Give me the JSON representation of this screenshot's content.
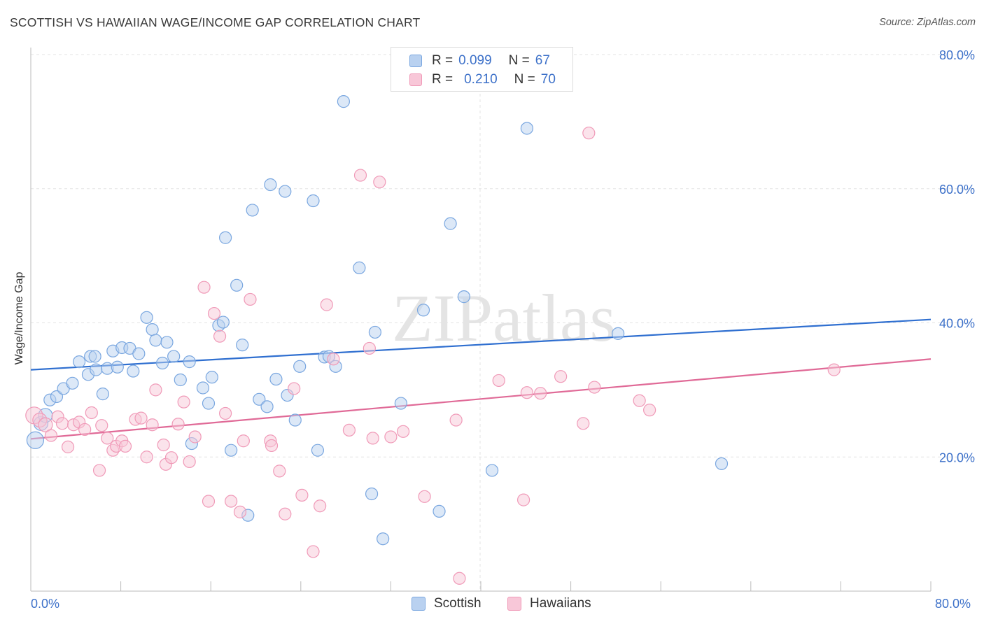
{
  "chart_data": {
    "type": "scatter",
    "title": "SCOTTISH VS HAWAIIAN WAGE/INCOME GAP CORRELATION CHART",
    "source": "Source: ZipAtlas.com",
    "xlabel": "",
    "ylabel": "Wage/Income Gap",
    "xlim": [
      0,
      80
    ],
    "ylim": [
      0,
      80
    ],
    "x_tick_labels": [
      "0.0%",
      "80.0%"
    ],
    "y_tick_labels": [
      "20.0%",
      "40.0%",
      "60.0%",
      "80.0%"
    ],
    "y_ticks": [
      20,
      40,
      60,
      80
    ],
    "watermark": "ZIPatlas",
    "legend": [
      {
        "series": "Scottish",
        "r_label": "R =",
        "r_value": "0.099",
        "n_label": "N =",
        "n_value": "67"
      },
      {
        "series": "Hawaiians",
        "r_label": "R =",
        "r_value": "0.210",
        "n_label": "N =",
        "n_value": "70"
      }
    ],
    "series": [
      {
        "name": "Scottish",
        "color": "#7aa7e0",
        "fill": "#b9d1f0",
        "line_color": "#2f6fd0",
        "trend": {
          "x": [
            0,
            80
          ],
          "y": [
            33.0,
            40.5
          ]
        },
        "points": [
          [
            0.4,
            22.5
          ],
          [
            0.9,
            25.0
          ],
          [
            1.3,
            26.2
          ],
          [
            1.7,
            28.5
          ],
          [
            2.3,
            29.0
          ],
          [
            2.9,
            30.2
          ],
          [
            3.7,
            31.0
          ],
          [
            4.3,
            34.2
          ],
          [
            5.1,
            32.3
          ],
          [
            5.3,
            35.0
          ],
          [
            5.7,
            35.0
          ],
          [
            5.8,
            33.0
          ],
          [
            6.4,
            29.4
          ],
          [
            6.8,
            33.2
          ],
          [
            7.3,
            35.8
          ],
          [
            7.7,
            33.4
          ],
          [
            8.1,
            36.3
          ],
          [
            8.8,
            36.2
          ],
          [
            9.1,
            32.8
          ],
          [
            9.6,
            35.4
          ],
          [
            10.3,
            40.8
          ],
          [
            10.8,
            39.0
          ],
          [
            11.1,
            37.4
          ],
          [
            11.7,
            34.0
          ],
          [
            12.1,
            37.1
          ],
          [
            12.7,
            35.0
          ],
          [
            13.3,
            31.5
          ],
          [
            14.1,
            34.2
          ],
          [
            14.3,
            22.0
          ],
          [
            15.3,
            30.3
          ],
          [
            15.8,
            28.0
          ],
          [
            16.1,
            31.9
          ],
          [
            16.7,
            39.6
          ],
          [
            17.1,
            40.1
          ],
          [
            17.3,
            52.7
          ],
          [
            17.8,
            21.0
          ],
          [
            18.3,
            45.6
          ],
          [
            18.8,
            36.7
          ],
          [
            19.3,
            11.3
          ],
          [
            19.7,
            56.8
          ],
          [
            20.3,
            28.6
          ],
          [
            21.0,
            27.5
          ],
          [
            21.3,
            60.6
          ],
          [
            21.8,
            31.6
          ],
          [
            22.6,
            59.6
          ],
          [
            22.8,
            29.2
          ],
          [
            23.5,
            25.5
          ],
          [
            23.9,
            33.5
          ],
          [
            25.1,
            58.2
          ],
          [
            25.5,
            21.0
          ],
          [
            26.1,
            34.9
          ],
          [
            26.5,
            35.0
          ],
          [
            27.1,
            33.5
          ],
          [
            27.8,
            73.0
          ],
          [
            29.2,
            48.2
          ],
          [
            30.3,
            14.5
          ],
          [
            30.6,
            38.6
          ],
          [
            31.3,
            7.8
          ],
          [
            32.9,
            28.0
          ],
          [
            34.9,
            41.9
          ],
          [
            36.3,
            11.9
          ],
          [
            37.3,
            54.8
          ],
          [
            38.5,
            43.9
          ],
          [
            41.0,
            18.0
          ],
          [
            44.1,
            69.0
          ],
          [
            52.2,
            38.4
          ],
          [
            61.4,
            19.0
          ]
        ]
      },
      {
        "name": "Hawaiians",
        "color": "#f09ab8",
        "fill": "#f8c7d8",
        "line_color": "#e06a97",
        "trend": {
          "x": [
            0,
            80
          ],
          "y": [
            22.7,
            34.6
          ]
        },
        "points": [
          [
            0.3,
            26.2
          ],
          [
            0.8,
            25.5
          ],
          [
            1.3,
            24.8
          ],
          [
            1.8,
            23.2
          ],
          [
            2.4,
            26.0
          ],
          [
            2.8,
            25.0
          ],
          [
            3.3,
            21.5
          ],
          [
            3.8,
            24.8
          ],
          [
            4.3,
            25.2
          ],
          [
            4.8,
            24.1
          ],
          [
            5.4,
            26.6
          ],
          [
            6.1,
            18.0
          ],
          [
            6.3,
            24.7
          ],
          [
            6.8,
            22.8
          ],
          [
            7.3,
            21.0
          ],
          [
            7.6,
            21.6
          ],
          [
            8.1,
            22.4
          ],
          [
            8.4,
            21.6
          ],
          [
            9.3,
            25.6
          ],
          [
            9.8,
            25.8
          ],
          [
            10.3,
            20.0
          ],
          [
            10.8,
            24.8
          ],
          [
            11.1,
            30.0
          ],
          [
            11.8,
            21.8
          ],
          [
            12.0,
            18.9
          ],
          [
            12.5,
            19.9
          ],
          [
            13.1,
            24.9
          ],
          [
            13.6,
            28.2
          ],
          [
            14.1,
            19.3
          ],
          [
            14.6,
            23.0
          ],
          [
            15.4,
            45.3
          ],
          [
            15.8,
            13.4
          ],
          [
            16.3,
            41.4
          ],
          [
            16.8,
            38.0
          ],
          [
            17.3,
            26.5
          ],
          [
            17.8,
            13.4
          ],
          [
            18.6,
            11.8
          ],
          [
            18.9,
            22.4
          ],
          [
            19.5,
            43.5
          ],
          [
            21.3,
            22.4
          ],
          [
            21.4,
            21.7
          ],
          [
            22.1,
            17.9
          ],
          [
            22.6,
            11.5
          ],
          [
            23.4,
            30.2
          ],
          [
            24.1,
            14.3
          ],
          [
            25.1,
            5.9
          ],
          [
            25.7,
            12.7
          ],
          [
            26.3,
            42.7
          ],
          [
            26.9,
            34.6
          ],
          [
            28.3,
            24.0
          ],
          [
            29.3,
            62.0
          ],
          [
            30.1,
            36.2
          ],
          [
            30.4,
            22.8
          ],
          [
            31.0,
            61.0
          ],
          [
            32.0,
            23.0
          ],
          [
            33.1,
            23.8
          ],
          [
            35.0,
            14.1
          ],
          [
            37.8,
            25.5
          ],
          [
            38.1,
            1.9
          ],
          [
            41.6,
            31.4
          ],
          [
            43.8,
            13.6
          ],
          [
            44.1,
            29.6
          ],
          [
            45.3,
            29.5
          ],
          [
            47.1,
            32.0
          ],
          [
            49.1,
            25.0
          ],
          [
            49.6,
            68.3
          ],
          [
            50.1,
            30.4
          ],
          [
            54.1,
            28.4
          ],
          [
            55.0,
            27.0
          ],
          [
            71.4,
            33.0
          ]
        ]
      }
    ],
    "bottom_legend": [
      "Scottish",
      "Hawaiians"
    ]
  }
}
